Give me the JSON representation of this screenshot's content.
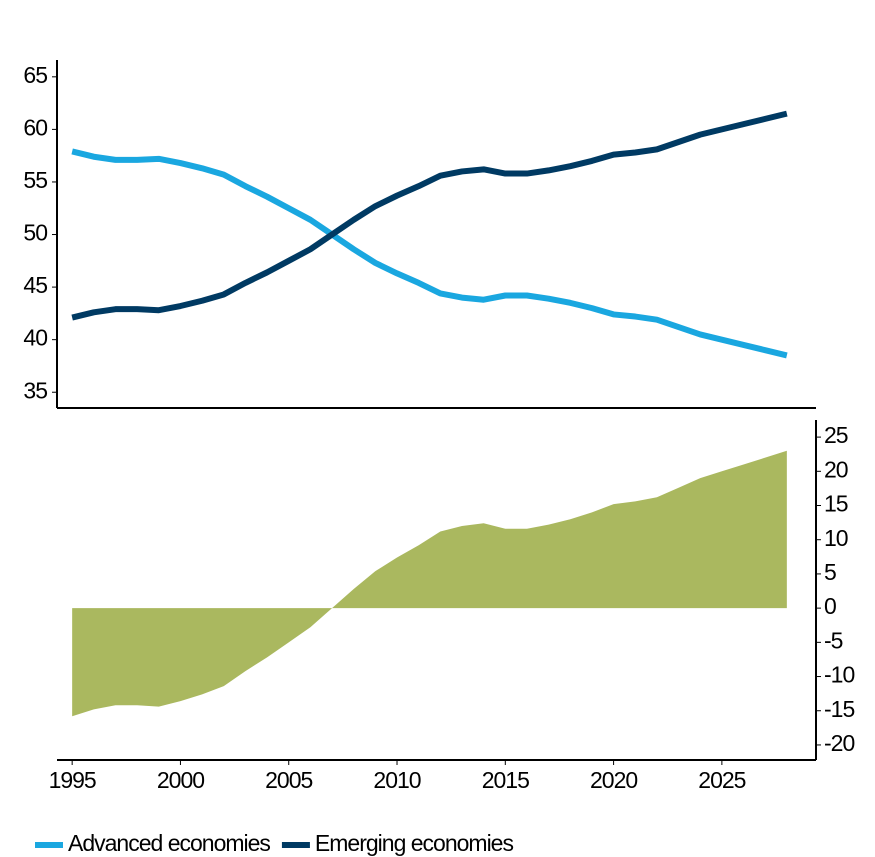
{
  "chart_data": [
    {
      "type": "line",
      "x": [
        1995,
        1996,
        1997,
        1998,
        1999,
        2000,
        2001,
        2002,
        2003,
        2004,
        2005,
        2006,
        2007,
        2008,
        2009,
        2010,
        2011,
        2012,
        2013,
        2014,
        2015,
        2016,
        2017,
        2018,
        2019,
        2020,
        2021,
        2022,
        2023,
        2024,
        2025,
        2026,
        2027,
        2028
      ],
      "series": [
        {
          "name": "Advanced economies",
          "color": "#1aa7e0",
          "values": [
            57.9,
            57.4,
            57.1,
            57.1,
            57.2,
            56.8,
            56.3,
            55.7,
            54.6,
            53.6,
            52.5,
            51.4,
            50.0,
            48.6,
            47.3,
            46.3,
            45.4,
            44.4,
            44.0,
            43.8,
            44.2,
            44.2,
            43.9,
            43.5,
            43.0,
            42.4,
            42.2,
            41.9,
            41.2,
            40.5,
            40.0,
            39.5,
            39.0,
            38.5
          ]
        },
        {
          "name": "Emerging economies",
          "color": "#003a63",
          "values": [
            42.1,
            42.6,
            42.9,
            42.9,
            42.8,
            43.2,
            43.7,
            44.3,
            45.4,
            46.4,
            47.5,
            48.6,
            50.0,
            51.4,
            52.7,
            53.7,
            54.6,
            55.6,
            56.0,
            56.2,
            55.8,
            55.8,
            56.1,
            56.5,
            57.0,
            57.6,
            57.8,
            58.1,
            58.8,
            59.5,
            60.0,
            60.5,
            61.0,
            61.5
          ]
        }
      ],
      "xlim": [
        1994.3,
        2029.3
      ],
      "ylim": [
        33.5,
        66.6
      ],
      "yticks": [
        35,
        40,
        45,
        50,
        55,
        60,
        65
      ],
      "yaxis": "left",
      "legend": "bottom"
    },
    {
      "type": "area",
      "x": [
        1995,
        1996,
        1997,
        1998,
        1999,
        2000,
        2001,
        2002,
        2003,
        2004,
        2005,
        2006,
        2007,
        2008,
        2009,
        2010,
        2011,
        2012,
        2013,
        2014,
        2015,
        2016,
        2017,
        2018,
        2019,
        2020,
        2021,
        2022,
        2023,
        2024,
        2025,
        2026,
        2027,
        2028
      ],
      "series": [
        {
          "color": "#aab85f",
          "values": [
            -15.8,
            -14.8,
            -14.2,
            -14.2,
            -14.4,
            -13.6,
            -12.6,
            -11.4,
            -9.2,
            -7.2,
            -5.0,
            -2.8,
            0,
            2.8,
            5.4,
            7.4,
            9.2,
            11.2,
            12.0,
            12.4,
            11.6,
            11.6,
            12.2,
            13.0,
            14.0,
            15.2,
            15.6,
            16.2,
            17.6,
            19.0,
            20.0,
            21.0,
            22.0,
            23.0
          ]
        }
      ],
      "xlim": [
        1994.3,
        2029.3
      ],
      "xticks": [
        1995,
        2000,
        2005,
        2010,
        2015,
        2020,
        2025
      ],
      "ylim": [
        -22.2,
        27.5
      ],
      "yticks": [
        -20,
        -15,
        -10,
        -5,
        0,
        5,
        10,
        15,
        20,
        25
      ],
      "yaxis": "right"
    }
  ]
}
